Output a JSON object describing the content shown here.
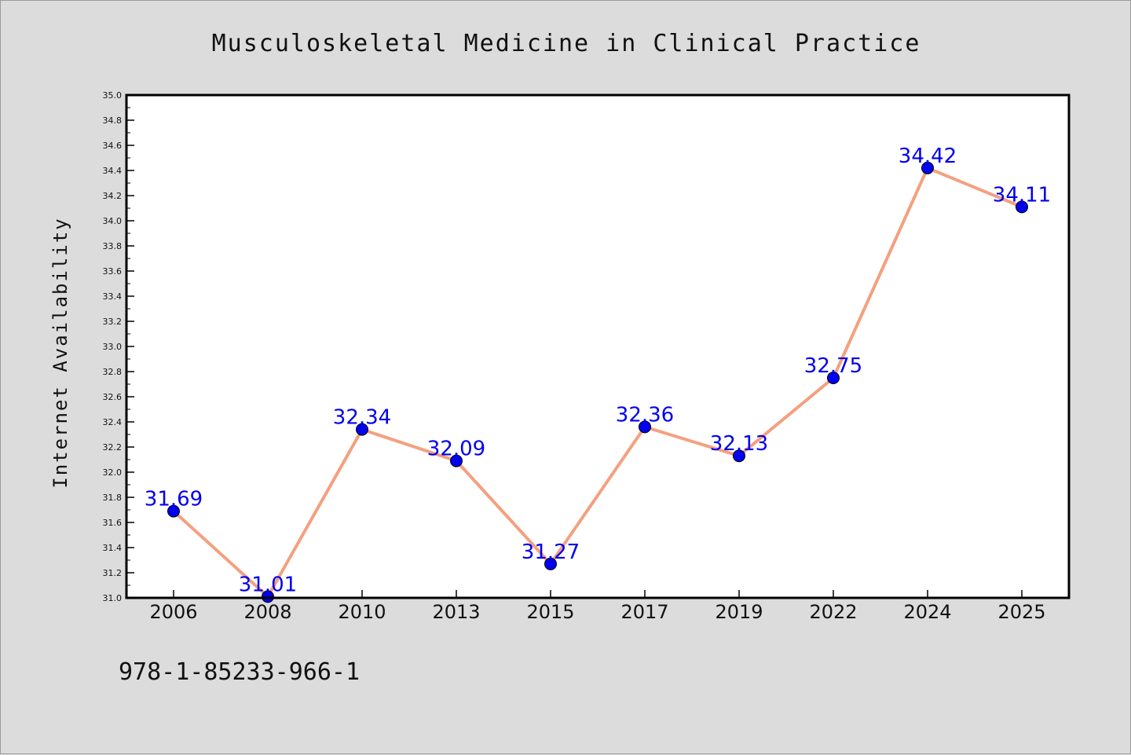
{
  "chart_data": {
    "type": "line",
    "title": "Musculoskeletal Medicine in Clinical Practice",
    "xlabel": "",
    "ylabel": "Internet Availability",
    "categories": [
      "2006",
      "2008",
      "2010",
      "2013",
      "2015",
      "2017",
      "2019",
      "2022",
      "2024",
      "2025"
    ],
    "series": [
      {
        "values": [
          31.69,
          31.01,
          32.34,
          32.09,
          31.27,
          32.36,
          32.13,
          32.75,
          34.42,
          34.11
        ],
        "line_color": "#f4a07f",
        "marker_color": "#0000ee"
      }
    ],
    "data_labels": [
      "31.69",
      "31.01",
      "32.34",
      "32.09",
      "31.27",
      "32.36",
      "32.13",
      "32.75",
      "34.42",
      "34.11"
    ],
    "ylim": [
      31.0,
      35.0
    ],
    "yticks": [
      "31.0",
      "31.2",
      "31.4",
      "31.6",
      "31.8",
      "32.0",
      "32.2",
      "32.4",
      "32.6",
      "32.8",
      "33.0",
      "33.2",
      "33.4",
      "33.6",
      "33.8",
      "34.0",
      "34.2",
      "34.4",
      "34.6",
      "34.8",
      "35.0"
    ],
    "grid": false,
    "legend": "none",
    "label_color": "#0000ee",
    "background": "#dcdcdc",
    "plot_background": "#ffffff"
  },
  "footer": {
    "isbn": "978-1-85233-966-1"
  }
}
